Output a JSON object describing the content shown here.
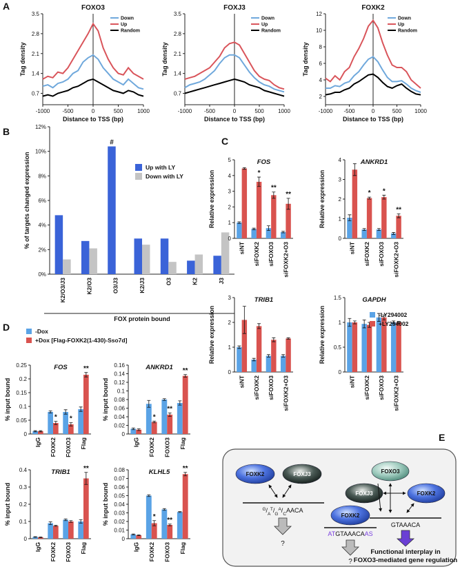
{
  "panel_labels": [
    "A",
    "B",
    "C",
    "D",
    "E"
  ],
  "chart_data": [
    {
      "type": "line",
      "title": "FOXO3",
      "xlabel": "Distance to TSS (bp)",
      "ylabel": "Tag density",
      "x": [
        -1000,
        -900,
        -800,
        -700,
        -600,
        -500,
        -400,
        -300,
        -200,
        -100,
        0,
        100,
        200,
        300,
        400,
        500,
        600,
        700,
        800,
        900,
        1000
      ],
      "xlim": [
        -1000,
        1000
      ],
      "xticks": [
        -1000,
        -500,
        0,
        500,
        1000
      ],
      "ylim": [
        0.3,
        3.5
      ],
      "yticks": [
        0.7,
        1.4,
        2.1,
        2.8,
        3.5
      ],
      "series": [
        {
          "name": "Down",
          "color": "#6fa8dc",
          "values": [
            0.95,
            1.0,
            0.9,
            1.05,
            1.1,
            1.2,
            1.4,
            1.5,
            1.8,
            1.95,
            2.05,
            1.9,
            1.6,
            1.4,
            1.2,
            1.1,
            1.0,
            1.2,
            1.05,
            0.9,
            0.85
          ]
        },
        {
          "name": "Up",
          "color": "#d9545a",
          "values": [
            1.2,
            1.3,
            1.25,
            1.45,
            1.4,
            1.6,
            1.9,
            2.2,
            2.5,
            2.8,
            3.15,
            2.9,
            2.3,
            1.9,
            1.6,
            1.4,
            1.35,
            1.6,
            1.4,
            1.3,
            1.2
          ]
        },
        {
          "name": "Random",
          "color": "#000000",
          "values": [
            0.6,
            0.65,
            0.6,
            0.7,
            0.75,
            0.8,
            0.9,
            0.95,
            1.05,
            1.15,
            1.2,
            1.1,
            1.0,
            0.9,
            0.8,
            0.75,
            0.7,
            0.8,
            0.75,
            0.65,
            0.6
          ]
        }
      ]
    },
    {
      "type": "line",
      "title": "FOXJ3",
      "xlabel": "Distance to TSS (bp)",
      "ylabel": "Tag density",
      "x": [
        -1000,
        -900,
        -800,
        -700,
        -600,
        -500,
        -400,
        -300,
        -200,
        -100,
        0,
        100,
        200,
        300,
        400,
        500,
        600,
        700,
        800,
        900,
        1000
      ],
      "xlim": [
        -1000,
        1000
      ],
      "xticks": [
        -1000,
        -500,
        0,
        500,
        1000
      ],
      "ylim": [
        0.3,
        3.5
      ],
      "yticks": [
        0.7,
        1.4,
        2.1,
        2.8,
        3.5
      ],
      "series": [
        {
          "name": "Down",
          "color": "#6fa8dc",
          "values": [
            0.9,
            1.0,
            1.05,
            1.1,
            1.2,
            1.35,
            1.5,
            1.75,
            1.95,
            2.05,
            2.05,
            1.95,
            1.7,
            1.45,
            1.25,
            1.1,
            1.0,
            0.95,
            0.85,
            0.8,
            0.75
          ]
        },
        {
          "name": "Up",
          "color": "#d9545a",
          "values": [
            1.2,
            1.25,
            1.3,
            1.4,
            1.5,
            1.6,
            1.8,
            2.0,
            2.3,
            2.45,
            2.5,
            2.4,
            2.1,
            1.8,
            1.5,
            1.3,
            1.2,
            1.15,
            1.0,
            0.9,
            0.85
          ]
        },
        {
          "name": "Random",
          "color": "#000000",
          "values": [
            0.7,
            0.75,
            0.8,
            0.85,
            0.9,
            0.95,
            1.0,
            1.05,
            1.1,
            1.15,
            1.2,
            1.15,
            1.1,
            1.0,
            0.95,
            0.9,
            0.8,
            0.75,
            0.7,
            0.65,
            0.6
          ]
        }
      ]
    },
    {
      "type": "line",
      "title": "FOXK2",
      "xlabel": "Distance to TSS (bp)",
      "ylabel": "Tag density",
      "x": [
        -1000,
        -900,
        -800,
        -700,
        -600,
        -500,
        -400,
        -300,
        -200,
        -100,
        0,
        100,
        200,
        300,
        400,
        500,
        600,
        700,
        800,
        900,
        1000
      ],
      "xlim": [
        -1000,
        1000
      ],
      "xticks": [
        -1000,
        -500,
        0,
        500,
        1000
      ],
      "ylim": [
        1,
        12
      ],
      "yticks": [
        2,
        4,
        6,
        8,
        10,
        12
      ],
      "series": [
        {
          "name": "Down",
          "color": "#6fa8dc",
          "values": [
            3.0,
            3.0,
            3.3,
            3.2,
            3.6,
            3.8,
            4.5,
            5.0,
            5.8,
            6.5,
            6.8,
            6.2,
            5.2,
            4.3,
            3.8,
            3.8,
            3.9,
            3.5,
            3.0,
            2.7,
            2.5
          ]
        },
        {
          "name": "Up",
          "color": "#d9545a",
          "values": [
            4.2,
            3.8,
            4.5,
            4.0,
            5.0,
            5.5,
            6.8,
            7.8,
            9.0,
            10.5,
            11.2,
            10.3,
            8.5,
            7.0,
            5.8,
            5.5,
            5.5,
            5.0,
            4.0,
            3.5,
            3.0
          ]
        },
        {
          "name": "Random",
          "color": "#000000",
          "values": [
            2.2,
            2.3,
            2.5,
            2.5,
            2.8,
            3.0,
            3.5,
            3.8,
            4.2,
            4.6,
            4.7,
            4.3,
            3.7,
            3.2,
            3.0,
            3.3,
            3.5,
            3.0,
            2.6,
            2.3,
            2.2
          ]
        }
      ]
    },
    {
      "type": "bar",
      "xlabel": "FOX protein bound",
      "ylabel": "% of targets changed expression",
      "categories": [
        "K2/O3/J3",
        "K2/O3",
        "O3/J3",
        "K2/J3",
        "O3",
        "K2",
        "J3"
      ],
      "ylim": [
        0,
        12
      ],
      "yticks": [
        {
          "value": 0,
          "label": "0%"
        },
        {
          "value": 2,
          "label": "2%"
        },
        {
          "value": 4,
          "label": "4%"
        },
        {
          "value": 6,
          "label": "6%"
        },
        {
          "value": 8,
          "label": "8%"
        },
        {
          "value": 10,
          "label": "10%"
        },
        {
          "value": 12,
          "label": "12%"
        }
      ],
      "series": [
        {
          "name": "Up with LY",
          "color": "#3a63d8",
          "values": [
            4.8,
            2.7,
            10.4,
            2.9,
            2.9,
            1.1,
            1.5
          ],
          "significance": [
            null,
            null,
            "#",
            null,
            null,
            null,
            null
          ]
        },
        {
          "name": "Down with LY",
          "color": "#c4c4c4",
          "values": [
            1.2,
            2.1,
            0,
            2.4,
            1.0,
            1.6,
            3.4
          ]
        }
      ]
    },
    {
      "type": "bar",
      "title": "FOS",
      "ylabel": "Relative expression",
      "categories": [
        "siNT",
        "siFOXK2",
        "siFOXO3",
        "siFOXK2+O3"
      ],
      "ylim": [
        0,
        5
      ],
      "yticks": [
        0,
        1,
        2,
        3,
        4,
        5
      ],
      "series": [
        {
          "color": "#5aa3e6",
          "values": [
            1.0,
            0.6,
            0.65,
            0.4
          ],
          "errors": [
            0.05,
            0.05,
            0.15,
            0.05
          ]
        },
        {
          "color": "#d9534f",
          "values": [
            4.45,
            3.6,
            2.75,
            2.2
          ],
          "errors": [
            0.05,
            0.3,
            0.2,
            0.35
          ],
          "significance": [
            null,
            "*",
            "**",
            "**"
          ]
        }
      ]
    },
    {
      "type": "bar",
      "title": "ANKRD1",
      "ylabel": "Relative expression",
      "categories": [
        "siNT",
        "siFOXK2",
        "siFOXO3",
        "siFOXK2+O3"
      ],
      "ylim": [
        0,
        4
      ],
      "yticks": [
        0,
        1,
        2,
        3,
        4
      ],
      "series": [
        {
          "color": "#5aa3e6",
          "values": [
            1.05,
            0.45,
            0.45,
            0.25
          ],
          "errors": [
            0.15,
            0.05,
            0.05,
            0.05
          ]
        },
        {
          "color": "#d9534f",
          "values": [
            3.5,
            2.05,
            2.1,
            1.15
          ],
          "errors": [
            0.3,
            0.05,
            0.1,
            0.1
          ],
          "significance": [
            null,
            "*",
            "*",
            "**"
          ]
        }
      ]
    },
    {
      "type": "bar",
      "title": "TRIB1",
      "ylabel": "Relative expression",
      "categories": [
        "siNT",
        "siFOXK2",
        "siFOXO3",
        "siFOXK2+O3"
      ],
      "ylim": [
        0,
        3
      ],
      "yticks": [
        0,
        1,
        2,
        3
      ],
      "series": [
        {
          "color": "#5aa3e6",
          "values": [
            1.0,
            0.5,
            0.65,
            0.65
          ],
          "errors": [
            0.05,
            0.05,
            0.05,
            0.05
          ]
        },
        {
          "color": "#d9534f",
          "values": [
            2.1,
            1.85,
            1.3,
            1.35
          ],
          "errors": [
            0.55,
            0.1,
            0.08,
            0.03
          ]
        }
      ]
    },
    {
      "type": "bar",
      "title": "GAPDH",
      "ylabel": "Relative expression",
      "categories": [
        "siNT",
        "siFOXK2",
        "siFOXO3",
        "siFOXK2+O3"
      ],
      "ylim": [
        0,
        1.5
      ],
      "yticks": [
        0,
        0.5,
        1,
        1.5
      ],
      "series": [
        {
          "name": "-LY294002",
          "color": "#5aa3e6",
          "values": [
            1.0,
            0.97,
            1.1,
            1.0
          ],
          "errors": [
            0.08,
            0.08,
            0.08,
            0.03
          ]
        },
        {
          "name": "+LY294002",
          "color": "#d9534f",
          "values": [
            1.0,
            0.95,
            1.1,
            1.0
          ],
          "errors": [
            0.03,
            0.05,
            0.05,
            0.02
          ]
        }
      ]
    },
    {
      "type": "bar",
      "title": "FOS",
      "ylabel": "% input bound",
      "categories": [
        "IgG",
        "FOXK2",
        "FOXO3",
        "Flag"
      ],
      "ylim": [
        0,
        0.25
      ],
      "yticks": [
        0,
        0.05,
        0.1,
        0.15,
        0.2,
        0.25
      ],
      "series": [
        {
          "name": "-Dox",
          "color": "#5aa3e6",
          "values": [
            0.01,
            0.08,
            0.08,
            0.09
          ],
          "errors": [
            0.002,
            0.004,
            0.008,
            0.008
          ]
        },
        {
          "name": "+Dox [Flag-FOXK2(1-430)-Sso7d]",
          "color": "#d9534f",
          "values": [
            0.01,
            0.04,
            0.035,
            0.215
          ],
          "errors": [
            0.002,
            0.006,
            0.006,
            0.008
          ],
          "significance": [
            null,
            "*",
            "*",
            "**"
          ]
        }
      ]
    },
    {
      "type": "bar",
      "title": "ANKRD1",
      "ylabel": "% input bound",
      "categories": [
        "IgG",
        "FOXK2",
        "FOXO3",
        "Flag"
      ],
      "ylim": [
        0,
        0.16
      ],
      "yticks": [
        0,
        0.02,
        0.04,
        0.06,
        0.08,
        0.1,
        0.12,
        0.14,
        0.16
      ],
      "series": [
        {
          "color": "#5aa3e6",
          "values": [
            0.012,
            0.07,
            0.08,
            0.072
          ],
          "errors": [
            0.002,
            0.008,
            0.002,
            0.005
          ]
        },
        {
          "color": "#d9534f",
          "values": [
            0.01,
            0.028,
            0.045,
            0.135
          ],
          "errors": [
            0.002,
            0.002,
            0.004,
            0.003
          ],
          "significance": [
            null,
            "*",
            "**",
            "**"
          ]
        }
      ]
    },
    {
      "type": "bar",
      "title": "TRIB1",
      "ylabel": "% input bound",
      "categories": [
        "IgG",
        "FOXK2",
        "FOXO3",
        "Flag"
      ],
      "ylim": [
        0,
        0.4
      ],
      "yticks": [
        0,
        0.1,
        0.2,
        0.3,
        0.4
      ],
      "series": [
        {
          "color": "#5aa3e6",
          "values": [
            0.01,
            0.09,
            0.11,
            0.1
          ],
          "errors": [
            0.002,
            0.008,
            0.005,
            0.01
          ]
        },
        {
          "color": "#d9534f",
          "values": [
            0.008,
            0.075,
            0.1,
            0.35
          ],
          "errors": [
            0.002,
            0.003,
            0.005,
            0.035
          ],
          "significance": [
            null,
            null,
            null,
            "**"
          ]
        }
      ]
    },
    {
      "type": "bar",
      "title": "KLHL5",
      "ylabel": "% input bound",
      "categories": [
        "IgG",
        "FOXK2",
        "FOXO3",
        "Flag"
      ],
      "ylim": [
        0,
        0.08
      ],
      "yticks": [
        0,
        0.01,
        0.02,
        0.03,
        0.04,
        0.05,
        0.06,
        0.07,
        0.08
      ],
      "series": [
        {
          "color": "#5aa3e6",
          "values": [
            0.005,
            0.05,
            0.034,
            0.031
          ],
          "errors": [
            0.0005,
            0.001,
            0.001,
            0.0005
          ]
        },
        {
          "color": "#d9534f",
          "values": [
            0.004,
            0.018,
            0.016,
            0.075
          ],
          "errors": [
            0.0005,
            0.003,
            0.001,
            0.002
          ],
          "significance": [
            null,
            "*",
            "**",
            "**"
          ]
        }
      ]
    }
  ],
  "diagram": {
    "left_nodes": [
      "FOXK2",
      "FOXJ3"
    ],
    "motif_1": [
      "G",
      "/",
      "A",
      "T",
      "/",
      "G",
      "A",
      "/",
      "C",
      "AACA"
    ],
    "unknown_1": "?",
    "middle_node": "FOXK2",
    "motif_2": [
      "AT",
      "GTAAACA",
      "AS"
    ],
    "unknown_2": "?",
    "right_nodes": [
      "FOXO3",
      "FOXJ3",
      "FOXK2"
    ],
    "motif_3": "GTAAACA",
    "conclusion": [
      "Functional interplay in",
      "FOXO3-mediated gene regulation"
    ]
  }
}
